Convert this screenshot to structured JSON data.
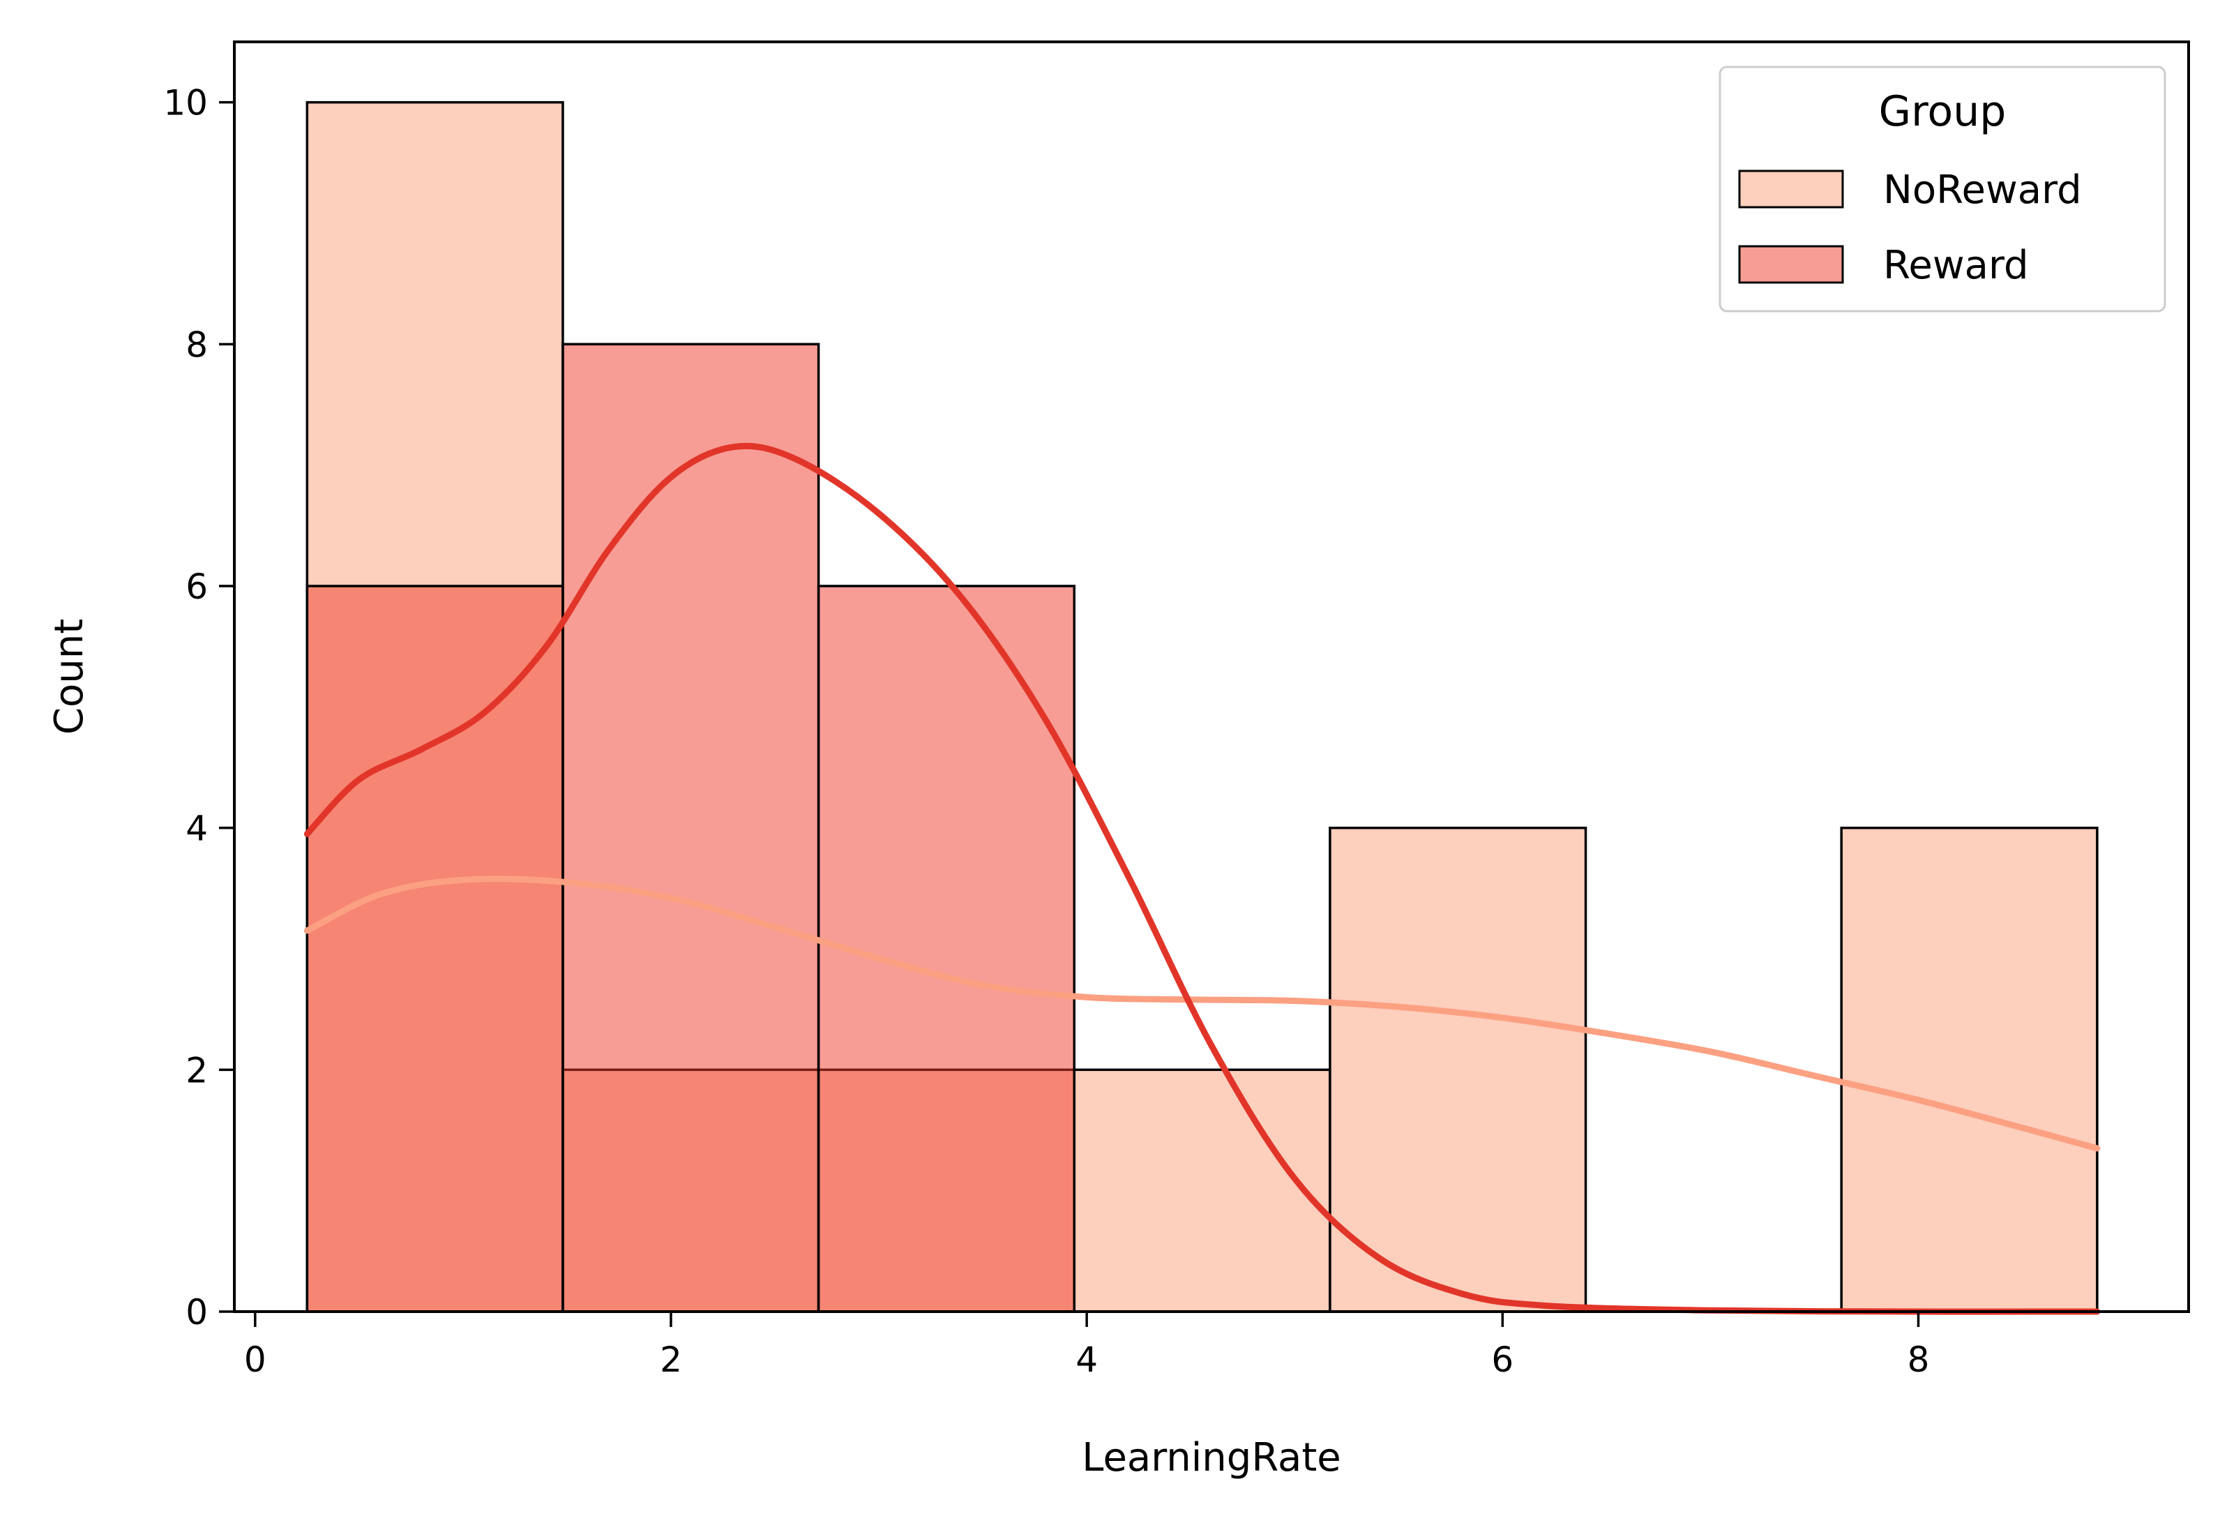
{
  "chart_data": {
    "type": "bar",
    "xlabel": "LearningRate",
    "ylabel": "Count",
    "xlim": [
      -0.1,
      9.3
    ],
    "ylim": [
      0,
      10.5
    ],
    "xticks": [
      0,
      2,
      4,
      6,
      8
    ],
    "yticks": [
      0,
      2,
      4,
      6,
      8,
      10
    ],
    "grid": false,
    "legend": {
      "title": "Group",
      "placement": "top-right",
      "entries": [
        "NoReward",
        "Reward"
      ]
    },
    "bin_edges": [
      0.25,
      1.48,
      2.71,
      3.94,
      5.17,
      6.4,
      7.63,
      8.86
    ],
    "series": [
      {
        "name": "NoReward",
        "color": "#fcbba1",
        "kde_color": "#fca082",
        "values": [
          10,
          2,
          2,
          2,
          4,
          0,
          4
        ],
        "kde": [
          [
            0.25,
            3.15
          ],
          [
            0.6,
            3.45
          ],
          [
            1.0,
            3.57
          ],
          [
            1.5,
            3.55
          ],
          [
            2.0,
            3.42
          ],
          [
            2.5,
            3.18
          ],
          [
            3.0,
            2.92
          ],
          [
            3.5,
            2.7
          ],
          [
            4.0,
            2.6
          ],
          [
            4.5,
            2.58
          ],
          [
            5.0,
            2.57
          ],
          [
            5.5,
            2.52
          ],
          [
            6.0,
            2.43
          ],
          [
            6.5,
            2.3
          ],
          [
            7.0,
            2.15
          ],
          [
            7.5,
            1.95
          ],
          [
            8.0,
            1.75
          ],
          [
            8.5,
            1.52
          ],
          [
            8.86,
            1.35
          ]
        ]
      },
      {
        "name": "Reward",
        "color": "#ef3b2c",
        "kde_color": "#e23529",
        "values": [
          6,
          8,
          6,
          0,
          0,
          0,
          0
        ],
        "kde": [
          [
            0.25,
            3.95
          ],
          [
            0.5,
            4.4
          ],
          [
            0.8,
            4.65
          ],
          [
            1.1,
            4.95
          ],
          [
            1.4,
            5.5
          ],
          [
            1.7,
            6.3
          ],
          [
            2.0,
            6.9
          ],
          [
            2.3,
            7.15
          ],
          [
            2.6,
            7.05
          ],
          [
            3.0,
            6.6
          ],
          [
            3.4,
            5.9
          ],
          [
            3.8,
            4.9
          ],
          [
            4.2,
            3.6
          ],
          [
            4.6,
            2.2
          ],
          [
            5.0,
            1.1
          ],
          [
            5.4,
            0.45
          ],
          [
            5.8,
            0.15
          ],
          [
            6.2,
            0.05
          ],
          [
            7.0,
            0.01
          ],
          [
            8.0,
            0.0
          ],
          [
            8.86,
            0.0
          ]
        ]
      }
    ]
  }
}
